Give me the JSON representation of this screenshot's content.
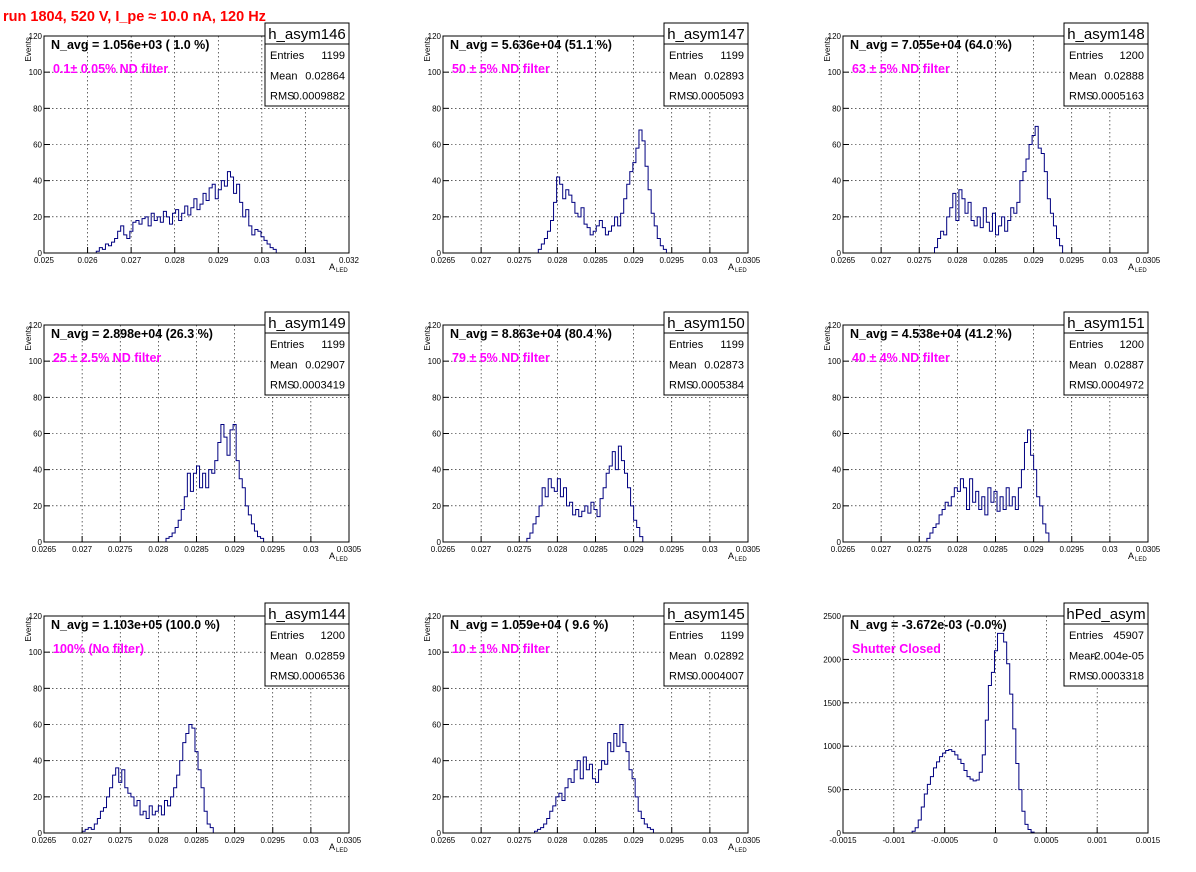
{
  "header": {
    "run_label": "run 1804,   520 V, I_pe ≈ 10.0 nA, 120 Hz"
  },
  "colors": {
    "histogram": "#000080",
    "annotation": "#ff00ff",
    "title": "#ff0000",
    "grid": "#000000"
  },
  "chart_data": [
    {
      "type": "histogram",
      "name": "h_asym146",
      "navg": "N_avg = 1.056e+03 ( 1.0 %)",
      "label": "0.1± 0.05% ND filter",
      "stats": [
        [
          "Entries",
          "1199"
        ],
        [
          "Mean",
          "0.02864"
        ],
        [
          "RMS",
          "0.0009882"
        ]
      ],
      "ylabel": "Events",
      "xlabel": "A",
      "xlabel_sub": "LED",
      "xlim": [
        0.025,
        0.032
      ],
      "ylim": [
        0,
        120
      ],
      "xticks": [
        0.025,
        0.026,
        0.027,
        0.028,
        0.029,
        0.03,
        0.031,
        0.032
      ],
      "xticklabels": [
        "0.025",
        "0.026",
        "0.027",
        "0.028",
        "0.029",
        "0.03",
        "0.031",
        "0.032"
      ],
      "yticks": [
        0,
        20,
        40,
        60,
        80,
        100,
        120
      ],
      "yticklabels": [
        "0",
        "20",
        "40",
        "60",
        "80",
        "100",
        "120"
      ],
      "bins": {
        "start": 0.0262,
        "width": 7e-05,
        "values": [
          1,
          3,
          2,
          5,
          4,
          6,
          8,
          12,
          15,
          10,
          8,
          12,
          17,
          18,
          16,
          19,
          20,
          15,
          22,
          18,
          20,
          17,
          23,
          20,
          16,
          22,
          24,
          18,
          22,
          26,
          21,
          25,
          30,
          24,
          27,
          33,
          29,
          36,
          38,
          30,
          35,
          40,
          37,
          45,
          42,
          33,
          38,
          28,
          20,
          24,
          15,
          10,
          13,
          12,
          9,
          7,
          5,
          3,
          2
        ]
      }
    },
    {
      "type": "histogram",
      "name": "h_asym147",
      "navg": "N_avg = 5.636e+04 (51.1 %)",
      "label": "50 ± 5% ND filter",
      "stats": [
        [
          "Entries",
          "1199"
        ],
        [
          "Mean",
          "0.02893"
        ],
        [
          "RMS",
          "0.0005093"
        ]
      ],
      "ylabel": "Events",
      "xlabel": "A",
      "xlabel_sub": "LED",
      "xlim": [
        0.0265,
        0.0305
      ],
      "ylim": [
        0,
        120
      ],
      "xticks": [
        0.0265,
        0.027,
        0.0275,
        0.028,
        0.0285,
        0.029,
        0.0295,
        0.03,
        0.0305
      ],
      "xticklabels": [
        "0.0265",
        "0.027",
        "0.0275",
        "0.028",
        "0.0285",
        "0.029",
        "0.0295",
        "0.03",
        "0.0305"
      ],
      "yticks": [
        0,
        20,
        40,
        60,
        80,
        100,
        120
      ],
      "yticklabels": [
        "0",
        "20",
        "40",
        "60",
        "80",
        "100",
        "120"
      ],
      "bins": {
        "start": 0.02775,
        "width": 4e-05,
        "values": [
          2,
          5,
          8,
          12,
          18,
          28,
          42,
          38,
          30,
          35,
          32,
          28,
          22,
          20,
          25,
          16,
          14,
          10,
          12,
          15,
          18,
          14,
          10,
          12,
          15,
          20,
          15,
          22,
          30,
          38,
          45,
          50,
          58,
          68,
          62,
          48,
          35,
          22,
          15,
          8,
          4,
          2
        ]
      }
    },
    {
      "type": "histogram",
      "name": "h_asym148",
      "navg": "N_avg = 7.055e+04 (64.0 %)",
      "label": "63 ± 5% ND filter",
      "stats": [
        [
          "Entries",
          "1200"
        ],
        [
          "Mean",
          "0.02888"
        ],
        [
          "RMS",
          "0.0005163"
        ]
      ],
      "ylabel": "Events",
      "xlabel": "A",
      "xlabel_sub": "LED",
      "xlim": [
        0.0265,
        0.0305
      ],
      "ylim": [
        0,
        120
      ],
      "xticks": [
        0.0265,
        0.027,
        0.0275,
        0.028,
        0.0285,
        0.029,
        0.0295,
        0.03,
        0.0305
      ],
      "xticklabels": [
        "0.0265",
        "0.027",
        "0.0275",
        "0.028",
        "0.0285",
        "0.029",
        "0.0295",
        "0.03",
        "0.0305"
      ],
      "yticks": [
        0,
        20,
        40,
        60,
        80,
        100,
        120
      ],
      "yticklabels": [
        "0",
        "20",
        "40",
        "60",
        "80",
        "100",
        "120"
      ],
      "bins": {
        "start": 0.0277,
        "width": 4e-05,
        "values": [
          3,
          8,
          12,
          10,
          20,
          25,
          33,
          18,
          35,
          30,
          22,
          28,
          18,
          15,
          20,
          14,
          25,
          17,
          12,
          22,
          10,
          15,
          20,
          12,
          18,
          25,
          22,
          28,
          40,
          45,
          52,
          60,
          65,
          70,
          58,
          55,
          45,
          30,
          22,
          15,
          8,
          4
        ]
      }
    },
    {
      "type": "histogram",
      "name": "h_asym149",
      "navg": "N_avg = 2.898e+04 (26.3 %)",
      "label": "25 ± 2.5% ND filter",
      "stats": [
        [
          "Entries",
          "1199"
        ],
        [
          "Mean",
          "0.02907"
        ],
        [
          "RMS",
          "0.0003419"
        ]
      ],
      "ylabel": "Events",
      "xlabel": "A",
      "xlabel_sub": "LED",
      "xlim": [
        0.0265,
        0.0305
      ],
      "ylim": [
        0,
        120
      ],
      "xticks": [
        0.0265,
        0.027,
        0.0275,
        0.028,
        0.0285,
        0.029,
        0.0295,
        0.03,
        0.0305
      ],
      "xticklabels": [
        "0.0265",
        "0.027",
        "0.0275",
        "0.028",
        "0.0285",
        "0.029",
        "0.0295",
        "0.03",
        "0.0305"
      ],
      "yticks": [
        0,
        20,
        40,
        60,
        80,
        100,
        120
      ],
      "yticklabels": [
        "0",
        "20",
        "40",
        "60",
        "80",
        "100",
        "120"
      ],
      "bins": {
        "start": 0.0281,
        "width": 4e-05,
        "values": [
          2,
          3,
          5,
          8,
          12,
          18,
          25,
          38,
          28,
          38,
          42,
          30,
          38,
          30,
          40,
          38,
          45,
          55,
          65,
          58,
          48,
          62,
          65,
          45,
          35,
          30,
          20,
          15,
          10,
          6,
          3,
          2
        ]
      }
    },
    {
      "type": "histogram",
      "name": "h_asym150",
      "navg": "N_avg = 8.863e+04 (80.4 %)",
      "label": "79 ± 5% ND filter",
      "stats": [
        [
          "Entries",
          "1199"
        ],
        [
          "Mean",
          "0.02873"
        ],
        [
          "RMS",
          "0.0005384"
        ]
      ],
      "ylabel": "Events",
      "xlabel": "A",
      "xlabel_sub": "LED",
      "xlim": [
        0.0265,
        0.0305
      ],
      "ylim": [
        0,
        120
      ],
      "xticks": [
        0.0265,
        0.027,
        0.0275,
        0.028,
        0.0285,
        0.029,
        0.0295,
        0.03,
        0.0305
      ],
      "xticklabels": [
        "0.0265",
        "0.027",
        "0.0275",
        "0.028",
        "0.0285",
        "0.029",
        "0.0295",
        "0.03",
        "0.0305"
      ],
      "yticks": [
        0,
        20,
        40,
        60,
        80,
        100,
        120
      ],
      "yticklabels": [
        "0",
        "20",
        "40",
        "60",
        "80",
        "100",
        "120"
      ],
      "bins": {
        "start": 0.0276,
        "width": 4e-05,
        "values": [
          2,
          5,
          10,
          14,
          20,
          30,
          25,
          35,
          30,
          28,
          35,
          25,
          30,
          20,
          22,
          15,
          18,
          14,
          17,
          20,
          16,
          22,
          18,
          14,
          24,
          30,
          38,
          42,
          50,
          40,
          53,
          45,
          38,
          30,
          20,
          12,
          8,
          3
        ]
      }
    },
    {
      "type": "histogram",
      "name": "h_asym151",
      "navg": "N_avg = 4.538e+04 (41.2 %)",
      "label": "40 ± 4% ND filter",
      "stats": [
        [
          "Entries",
          "1200"
        ],
        [
          "Mean",
          "0.02887"
        ],
        [
          "RMS",
          "0.0004972"
        ]
      ],
      "ylabel": "Events",
      "xlabel": "A",
      "xlabel_sub": "LED",
      "xlim": [
        0.0265,
        0.0305
      ],
      "ylim": [
        0,
        120
      ],
      "xticks": [
        0.0265,
        0.027,
        0.0275,
        0.028,
        0.0285,
        0.029,
        0.0295,
        0.03,
        0.0305
      ],
      "xticklabels": [
        "0.0265",
        "0.027",
        "0.0275",
        "0.028",
        "0.0285",
        "0.029",
        "0.0295",
        "0.03",
        "0.0305"
      ],
      "yticks": [
        0,
        20,
        40,
        60,
        80,
        100,
        120
      ],
      "yticklabels": [
        "0",
        "20",
        "40",
        "60",
        "80",
        "100",
        "120"
      ],
      "bins": {
        "start": 0.0276,
        "width": 4e-05,
        "values": [
          2,
          5,
          8,
          10,
          15,
          18,
          22,
          20,
          25,
          30,
          28,
          35,
          30,
          18,
          35,
          22,
          28,
          18,
          25,
          15,
          30,
          22,
          28,
          17,
          25,
          18,
          30,
          20,
          25,
          18,
          30,
          40,
          55,
          62,
          48,
          40,
          25,
          20,
          10,
          5
        ]
      }
    },
    {
      "type": "histogram",
      "name": "h_asym144",
      "navg": "N_avg = 1.103e+05 (100.0 %)",
      "label": "100% (No filter)",
      "stats": [
        [
          "Entries",
          "1200"
        ],
        [
          "Mean",
          "0.02859"
        ],
        [
          "RMS",
          "0.0006536"
        ]
      ],
      "ylabel": "Events",
      "xlabel": "A",
      "xlabel_sub": "LED",
      "xlim": [
        0.0265,
        0.0305
      ],
      "ylim": [
        0,
        120
      ],
      "xticks": [
        0.0265,
        0.027,
        0.0275,
        0.028,
        0.0285,
        0.029,
        0.0295,
        0.03,
        0.0305
      ],
      "xticklabels": [
        "0.0265",
        "0.027",
        "0.0275",
        "0.028",
        "0.0285",
        "0.029",
        "0.0295",
        "0.03",
        "0.0305"
      ],
      "yticks": [
        0,
        20,
        40,
        60,
        80,
        100,
        120
      ],
      "yticklabels": [
        "0",
        "20",
        "40",
        "60",
        "80",
        "100",
        "120"
      ],
      "bins": {
        "start": 0.027,
        "width": 4e-05,
        "values": [
          1,
          2,
          3,
          2,
          5,
          8,
          12,
          14,
          20,
          25,
          32,
          36,
          28,
          35,
          25,
          22,
          20,
          15,
          18,
          10,
          12,
          8,
          15,
          10,
          12,
          15,
          10,
          18,
          15,
          20,
          25,
          32,
          40,
          50,
          55,
          60,
          58,
          45,
          35,
          25,
          12,
          5,
          3
        ]
      }
    },
    {
      "type": "histogram",
      "name": "h_asym145",
      "navg": "N_avg = 1.059e+04 ( 9.6 %)",
      "label": "10 ± 1% ND filter",
      "stats": [
        [
          "Entries",
          "1199"
        ],
        [
          "Mean",
          "0.02892"
        ],
        [
          "RMS",
          "0.0004007"
        ]
      ],
      "ylabel": "Events",
      "xlabel": "A",
      "xlabel_sub": "LED",
      "xlim": [
        0.0265,
        0.0305
      ],
      "ylim": [
        0,
        120
      ],
      "xticks": [
        0.0265,
        0.027,
        0.0275,
        0.028,
        0.0285,
        0.029,
        0.0295,
        0.03,
        0.0305
      ],
      "xticklabels": [
        "0.0265",
        "0.027",
        "0.0275",
        "0.028",
        "0.0285",
        "0.029",
        "0.0295",
        "0.03",
        "0.0305"
      ],
      "yticks": [
        0,
        20,
        40,
        60,
        80,
        100,
        120
      ],
      "yticklabels": [
        "0",
        "20",
        "40",
        "60",
        "80",
        "100",
        "120"
      ],
      "bins": {
        "start": 0.0277,
        "width": 4e-05,
        "values": [
          1,
          2,
          3,
          5,
          8,
          12,
          15,
          20,
          22,
          18,
          25,
          30,
          28,
          35,
          40,
          30,
          42,
          35,
          38,
          30,
          28,
          35,
          40,
          38,
          50,
          45,
          55,
          48,
          60,
          50,
          45,
          35,
          30,
          20,
          12,
          8,
          5,
          3,
          2
        ]
      }
    },
    {
      "type": "histogram",
      "name": "hPed_asym",
      "navg": "N_avg = -3.672e-03 (-0.0%)",
      "label": "Shutter Closed",
      "stats": [
        [
          "Entries",
          "45907"
        ],
        [
          "Mean",
          "-2.004e-05"
        ],
        [
          "RMS",
          "0.0003318"
        ]
      ],
      "ylabel": "",
      "xlabel": "",
      "xlabel_sub": "",
      "xlim": [
        -0.0015,
        0.0015
      ],
      "ylim": [
        0,
        2500
      ],
      "xticks": [
        -0.0015,
        -0.001,
        -0.0005,
        0,
        0.0005,
        0.001,
        0.0015
      ],
      "xticklabels": [
        "-0.0015",
        "-0.001",
        "-0.0005",
        "0",
        "0.0005",
        "0.001",
        "0.0015"
      ],
      "yticks": [
        0,
        500,
        1000,
        1500,
        2000,
        2500
      ],
      "yticklabels": [
        "0",
        "500",
        "1000",
        "1500",
        "2000",
        "2500"
      ],
      "bins": {
        "start": -0.00082,
        "width": 3e-05,
        "values": [
          20,
          60,
          150,
          300,
          450,
          560,
          650,
          750,
          820,
          880,
          920,
          950,
          960,
          940,
          900,
          850,
          800,
          720,
          650,
          620,
          600,
          610,
          700,
          900,
          1300,
          1700,
          1850,
          2100,
          2300,
          2300,
          2200,
          1950,
          1600,
          1200,
          800,
          500,
          250,
          100,
          40,
          10
        ]
      }
    }
  ]
}
